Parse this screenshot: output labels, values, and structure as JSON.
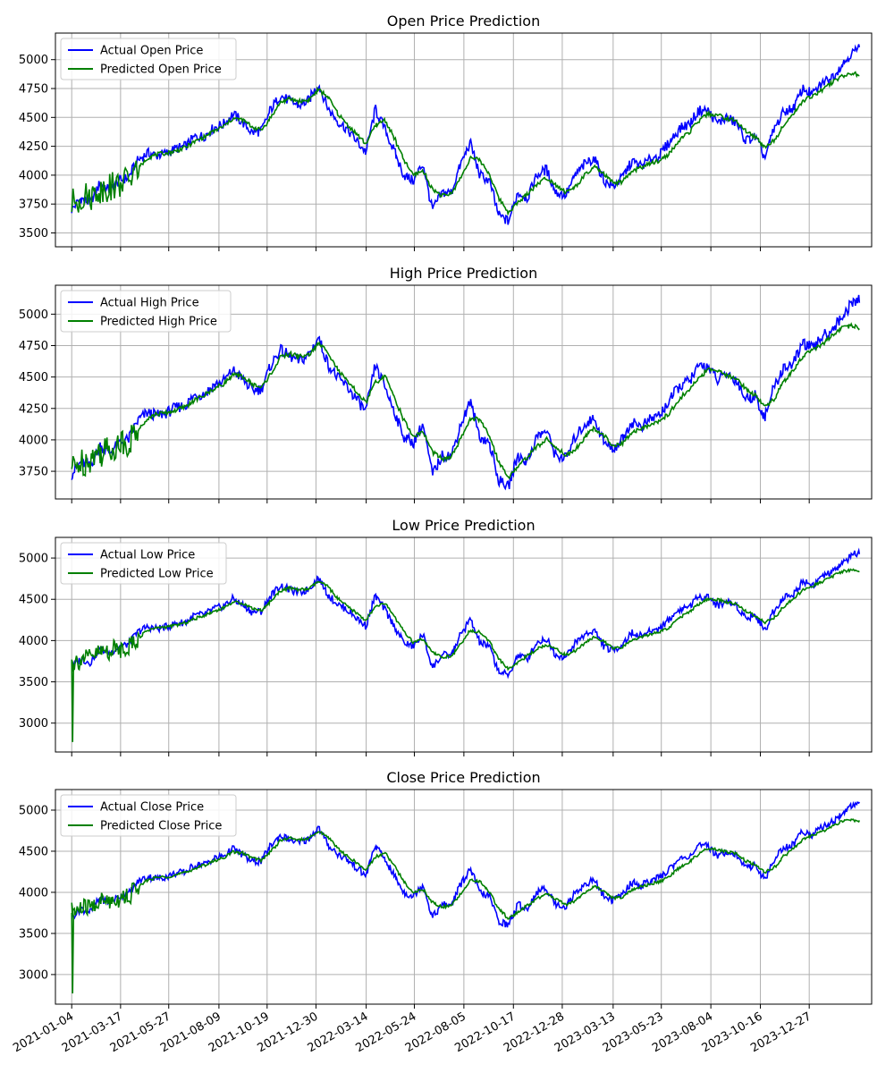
{
  "colors": {
    "actual": "#0000ff",
    "predicted": "#008000",
    "grid": "#b0b0b0",
    "axes": "#000000"
  },
  "chart_data": [
    {
      "type": "line",
      "title": "Open Price Prediction",
      "ylim": [
        3380,
        5230
      ],
      "yticks": [
        3500,
        3750,
        4000,
        4250,
        4500,
        4750,
        5000
      ],
      "legend_position": "top-left",
      "grid": true,
      "series": [
        {
          "name": "Actual Open Price",
          "color": "#0000ff"
        },
        {
          "name": "Predicted Open Price",
          "color": "#008000"
        }
      ]
    },
    {
      "type": "line",
      "title": "High Price Prediction",
      "ylim": [
        3530,
        5230
      ],
      "yticks": [
        3750,
        4000,
        4250,
        4500,
        4750,
        5000
      ],
      "legend_position": "top-left",
      "grid": true,
      "series": [
        {
          "name": "Actual High Price",
          "color": "#0000ff"
        },
        {
          "name": "Predicted High Price",
          "color": "#008000"
        }
      ]
    },
    {
      "type": "line",
      "title": "Low Price Prediction",
      "ylim": [
        2650,
        5250
      ],
      "yticks": [
        3000,
        3500,
        4000,
        4500,
        5000
      ],
      "legend_position": "top-left",
      "grid": true,
      "series": [
        {
          "name": "Actual Low Price",
          "color": "#0000ff"
        },
        {
          "name": "Predicted Low Price",
          "color": "#008000"
        }
      ]
    },
    {
      "type": "line",
      "title": "Close Price Prediction",
      "ylim": [
        2640,
        5250
      ],
      "yticks": [
        3000,
        3500,
        4000,
        4500,
        5000
      ],
      "legend_position": "top-left",
      "grid": true,
      "series": [
        {
          "name": "Actual Close Price",
          "color": "#0000ff"
        },
        {
          "name": "Predicted Close Price",
          "color": "#008000"
        }
      ]
    }
  ],
  "shared_x": {
    "ticks": [
      "2021-01-04",
      "2021-03-17",
      "2021-05-27",
      "2021-08-09",
      "2021-10-19",
      "2021-12-30",
      "2022-03-14",
      "2022-05-24",
      "2022-08-05",
      "2022-10-17",
      "2022-12-28",
      "2023-03-13",
      "2023-05-23",
      "2023-08-04",
      "2023-10-16",
      "2023-12-27"
    ],
    "actual_close": [
      [
        "2021-01-04",
        3700
      ],
      [
        "2021-01-18",
        3800
      ],
      [
        "2021-02-01",
        3760
      ],
      [
        "2021-02-15",
        3930
      ],
      [
        "2021-03-01",
        3870
      ],
      [
        "2021-03-15",
        3950
      ],
      [
        "2021-03-29",
        3980
      ],
      [
        "2021-04-12",
        4130
      ],
      [
        "2021-04-26",
        4190
      ],
      [
        "2021-05-10",
        4170
      ],
      [
        "2021-05-24",
        4190
      ],
      [
        "2021-06-07",
        4230
      ],
      [
        "2021-06-21",
        4250
      ],
      [
        "2021-07-05",
        4330
      ],
      [
        "2021-07-19",
        4340
      ],
      [
        "2021-08-02",
        4410
      ],
      [
        "2021-08-16",
        4440
      ],
      [
        "2021-08-30",
        4530
      ],
      [
        "2021-09-13",
        4460
      ],
      [
        "2021-09-27",
        4370
      ],
      [
        "2021-10-11",
        4380
      ],
      [
        "2021-10-25",
        4570
      ],
      [
        "2021-11-08",
        4690
      ],
      [
        "2021-11-22",
        4640
      ],
      [
        "2021-12-06",
        4600
      ],
      [
        "2021-12-20",
        4650
      ],
      [
        "2022-01-03",
        4790
      ],
      [
        "2022-01-17",
        4580
      ],
      [
        "2022-01-31",
        4470
      ],
      [
        "2022-02-14",
        4400
      ],
      [
        "2022-02-28",
        4300
      ],
      [
        "2022-03-14",
        4200
      ],
      [
        "2022-03-28",
        4570
      ],
      [
        "2022-04-11",
        4400
      ],
      [
        "2022-04-25",
        4200
      ],
      [
        "2022-05-09",
        4000
      ],
      [
        "2022-05-23",
        3950
      ],
      [
        "2022-06-06",
        4100
      ],
      [
        "2022-06-20",
        3700
      ],
      [
        "2022-07-05",
        3850
      ],
      [
        "2022-07-18",
        3850
      ],
      [
        "2022-08-01",
        4100
      ],
      [
        "2022-08-15",
        4280
      ],
      [
        "2022-08-29",
        4000
      ],
      [
        "2022-09-12",
        3950
      ],
      [
        "2022-09-26",
        3650
      ],
      [
        "2022-10-10",
        3600
      ],
      [
        "2022-10-24",
        3850
      ],
      [
        "2022-11-07",
        3800
      ],
      [
        "2022-11-21",
        4000
      ],
      [
        "2022-12-05",
        4050
      ],
      [
        "2022-12-19",
        3850
      ],
      [
        "2023-01-03",
        3830
      ],
      [
        "2023-01-17",
        4000
      ],
      [
        "2023-01-31",
        4100
      ],
      [
        "2023-02-14",
        4150
      ],
      [
        "2023-02-28",
        3950
      ],
      [
        "2023-03-13",
        3900
      ],
      [
        "2023-03-27",
        3980
      ],
      [
        "2023-04-10",
        4120
      ],
      [
        "2023-04-24",
        4080
      ],
      [
        "2023-05-08",
        4140
      ],
      [
        "2023-05-22",
        4180
      ],
      [
        "2023-06-05",
        4290
      ],
      [
        "2023-06-19",
        4400
      ],
      [
        "2023-07-05",
        4450
      ],
      [
        "2023-07-18",
        4560
      ],
      [
        "2023-07-31",
        4560
      ],
      [
        "2023-08-14",
        4450
      ],
      [
        "2023-08-28",
        4500
      ],
      [
        "2023-09-11",
        4450
      ],
      [
        "2023-09-25",
        4300
      ],
      [
        "2023-10-09",
        4330
      ],
      [
        "2023-10-23",
        4150
      ],
      [
        "2023-11-06",
        4400
      ],
      [
        "2023-11-20",
        4550
      ],
      [
        "2023-12-04",
        4580
      ],
      [
        "2023-12-18",
        4750
      ],
      [
        "2024-01-02",
        4700
      ],
      [
        "2024-01-16",
        4800
      ],
      [
        "2024-01-30",
        4850
      ],
      [
        "2024-02-13",
        4950
      ],
      [
        "2024-02-27",
        5050
      ],
      [
        "2024-03-11",
        5100
      ]
    ],
    "predicted_close": [
      [
        "2021-01-04",
        3750
      ],
      [
        "2021-01-18",
        3800
      ],
      [
        "2021-02-01",
        3820
      ],
      [
        "2021-02-15",
        3880
      ],
      [
        "2021-03-01",
        3900
      ],
      [
        "2021-03-15",
        3930
      ],
      [
        "2021-03-29",
        3960
      ],
      [
        "2021-04-12",
        4050
      ],
      [
        "2021-04-26",
        4150
      ],
      [
        "2021-05-10",
        4180
      ],
      [
        "2021-05-24",
        4190
      ],
      [
        "2021-06-07",
        4210
      ],
      [
        "2021-06-21",
        4240
      ],
      [
        "2021-07-05",
        4290
      ],
      [
        "2021-07-19",
        4330
      ],
      [
        "2021-08-02",
        4380
      ],
      [
        "2021-08-16",
        4420
      ],
      [
        "2021-08-30",
        4490
      ],
      [
        "2021-09-13",
        4480
      ],
      [
        "2021-09-27",
        4420
      ],
      [
        "2021-10-11",
        4390
      ],
      [
        "2021-10-25",
        4500
      ],
      [
        "2021-11-08",
        4630
      ],
      [
        "2021-11-22",
        4660
      ],
      [
        "2021-12-06",
        4640
      ],
      [
        "2021-12-20",
        4650
      ],
      [
        "2022-01-03",
        4740
      ],
      [
        "2022-01-17",
        4680
      ],
      [
        "2022-01-31",
        4540
      ],
      [
        "2022-02-14",
        4440
      ],
      [
        "2022-02-28",
        4360
      ],
      [
        "2022-03-14",
        4270
      ],
      [
        "2022-03-28",
        4430
      ],
      [
        "2022-04-11",
        4480
      ],
      [
        "2022-04-25",
        4320
      ],
      [
        "2022-05-09",
        4130
      ],
      [
        "2022-05-23",
        4000
      ],
      [
        "2022-06-06",
        4040
      ],
      [
        "2022-06-20",
        3880
      ],
      [
        "2022-07-05",
        3820
      ],
      [
        "2022-07-18",
        3840
      ],
      [
        "2022-08-01",
        3980
      ],
      [
        "2022-08-15",
        4150
      ],
      [
        "2022-08-29",
        4130
      ],
      [
        "2022-09-12",
        4010
      ],
      [
        "2022-09-26",
        3800
      ],
      [
        "2022-10-10",
        3680
      ],
      [
        "2022-10-24",
        3760
      ],
      [
        "2022-11-07",
        3840
      ],
      [
        "2022-11-21",
        3920
      ],
      [
        "2022-12-05",
        3980
      ],
      [
        "2022-12-19",
        3920
      ],
      [
        "2023-01-03",
        3850
      ],
      [
        "2023-01-17",
        3900
      ],
      [
        "2023-01-31",
        4000
      ],
      [
        "2023-02-14",
        4070
      ],
      [
        "2023-02-28",
        4010
      ],
      [
        "2023-03-13",
        3930
      ],
      [
        "2023-03-27",
        3940
      ],
      [
        "2023-04-10",
        4030
      ],
      [
        "2023-04-24",
        4070
      ],
      [
        "2023-05-08",
        4100
      ],
      [
        "2023-05-22",
        4130
      ],
      [
        "2023-06-05",
        4190
      ],
      [
        "2023-06-19",
        4300
      ],
      [
        "2023-07-05",
        4380
      ],
      [
        "2023-07-18",
        4470
      ],
      [
        "2023-07-31",
        4530
      ],
      [
        "2023-08-14",
        4520
      ],
      [
        "2023-08-28",
        4490
      ],
      [
        "2023-09-11",
        4470
      ],
      [
        "2023-09-25",
        4380
      ],
      [
        "2023-10-09",
        4330
      ],
      [
        "2023-10-23",
        4240
      ],
      [
        "2023-11-06",
        4300
      ],
      [
        "2023-11-20",
        4440
      ],
      [
        "2023-12-04",
        4530
      ],
      [
        "2023-12-18",
        4640
      ],
      [
        "2024-01-02",
        4690
      ],
      [
        "2024-01-16",
        4740
      ],
      [
        "2024-01-30",
        4800
      ],
      [
        "2024-02-13",
        4860
      ],
      [
        "2024-02-27",
        4880
      ],
      [
        "2024-03-11",
        4870
      ]
    ]
  }
}
